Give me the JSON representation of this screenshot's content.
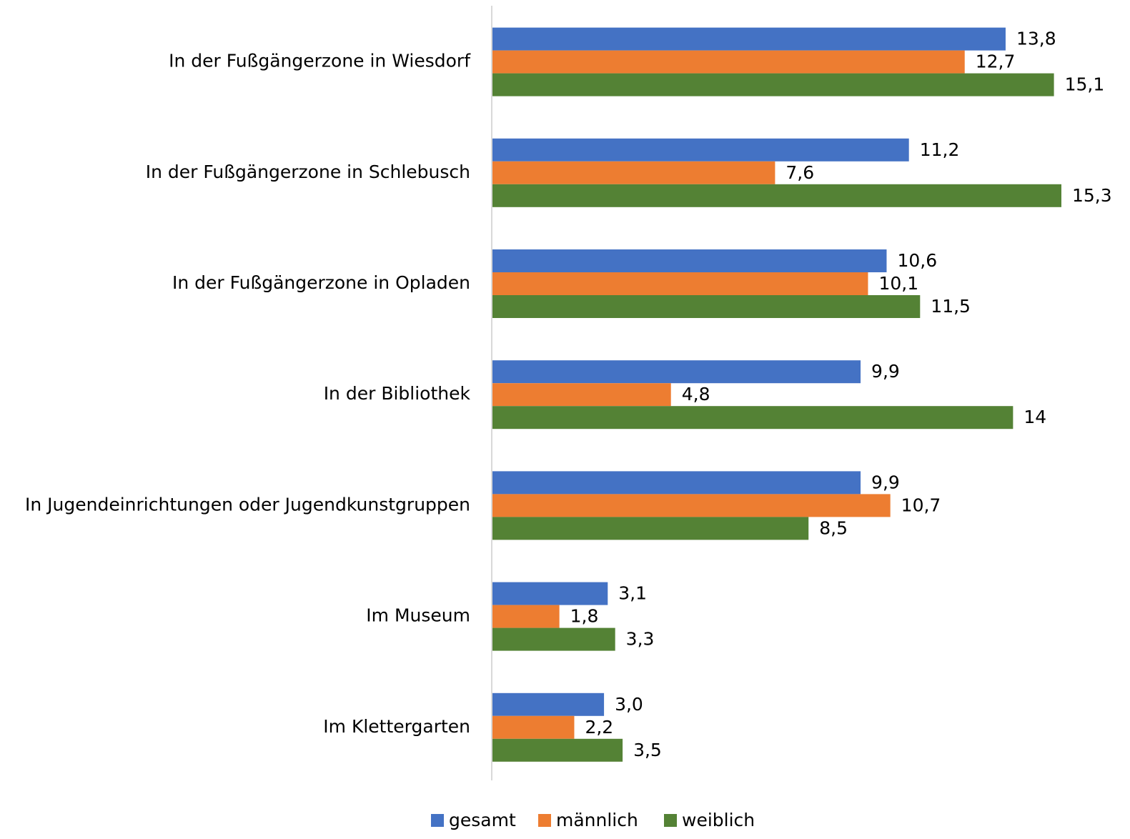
{
  "chart_data": {
    "type": "hbar",
    "categories": [
      "In der Fußgängerzone in Wiesdorf",
      "In der Fußgängerzone in Schlebusch",
      "In der Fußgängerzone in Opladen",
      "In der Bibliothek",
      "In Jugendeinrichtungen oder Jugendkunstgruppen",
      "Im Museum",
      "Im Klettergarten"
    ],
    "series": [
      {
        "name": "gesamt",
        "color": "#4472c4",
        "values": [
          13.8,
          11.2,
          10.6,
          9.9,
          9.9,
          3.1,
          3.0
        ],
        "value_labels": [
          "13,8",
          "11,2",
          "10,6",
          "9,9",
          "9,9",
          "3,1",
          "3,0"
        ]
      },
      {
        "name": "männlich",
        "color": "#ed7d31",
        "values": [
          12.7,
          7.6,
          10.1,
          4.8,
          10.7,
          1.8,
          2.2
        ],
        "value_labels": [
          "12,7",
          "7,6",
          "10,1",
          "4,8",
          "10,7",
          "1,8",
          "2,2"
        ]
      },
      {
        "name": "weiblich",
        "color": "#548235",
        "values": [
          15.1,
          15.3,
          11.5,
          14,
          8.5,
          3.3,
          3.5
        ],
        "value_labels": [
          "15,1",
          "15,3",
          "11,5",
          "14",
          "8,5",
          "3,3",
          "3,5"
        ]
      }
    ],
    "legend": "bottom"
  }
}
